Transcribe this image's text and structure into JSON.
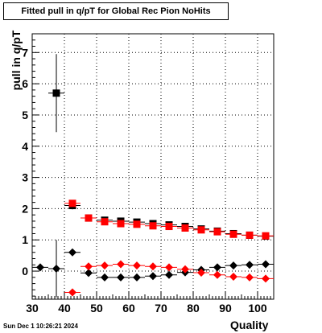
{
  "chart_data": {
    "type": "scatter",
    "title": "Fitted pull in q/pT for Global Rec Pion NoHits",
    "xlabel": "Quality",
    "ylabel": "pull in q/pT",
    "xlim": [
      30,
      105
    ],
    "ylim": [
      -0.9,
      7.6
    ],
    "xticks": [
      30,
      40,
      50,
      60,
      70,
      80,
      90,
      100
    ],
    "yticks": [
      0,
      1,
      2,
      3,
      4,
      5,
      6,
      7
    ],
    "grid": true,
    "x": [
      32.5,
      37.5,
      42.5,
      47.5,
      52.5,
      57.5,
      62.5,
      67.5,
      72.5,
      77.5,
      82.5,
      87.5,
      92.5,
      97.5,
      102.5
    ],
    "series": [
      {
        "marker": "square",
        "color": "#000000",
        "values": [
          null,
          5.7,
          2.1,
          1.7,
          1.63,
          1.6,
          1.57,
          1.52,
          1.48,
          1.43,
          1.35,
          1.28,
          1.2,
          1.15,
          1.12
        ],
        "errors": [
          null,
          1.25,
          0.12,
          0.04,
          0.04,
          0.04,
          0.03,
          0.03,
          0.03,
          0.03,
          0.03,
          0.03,
          0.03,
          0.03,
          0.03
        ]
      },
      {
        "marker": "square",
        "color": "#ff0000",
        "values": [
          null,
          null,
          2.17,
          1.7,
          1.58,
          1.52,
          1.5,
          1.45,
          1.43,
          1.38,
          1.32,
          1.26,
          1.18,
          1.15,
          1.13
        ],
        "errors": [
          null,
          null,
          0.1,
          0.04,
          0.04,
          0.04,
          0.03,
          0.03,
          0.03,
          0.03,
          0.03,
          0.03,
          0.03,
          0.03,
          0.03
        ]
      },
      {
        "marker": "diamond",
        "color": "#000000",
        "values": [
          0.12,
          0.08,
          0.6,
          -0.06,
          -0.2,
          -0.2,
          -0.2,
          -0.16,
          -0.12,
          -0.04,
          0.04,
          0.12,
          0.18,
          0.2,
          0.22
        ],
        "errors": [
          0.0,
          0.92,
          0.1,
          0.05,
          0.04,
          0.04,
          0.04,
          0.04,
          0.04,
          0.04,
          0.04,
          0.04,
          0.04,
          0.04,
          0.04
        ]
      },
      {
        "marker": "diamond",
        "color": "#ff0000",
        "values": [
          null,
          null,
          -0.68,
          0.15,
          0.18,
          0.22,
          0.18,
          0.15,
          0.12,
          0.06,
          -0.05,
          -0.12,
          -0.18,
          -0.2,
          -0.24
        ],
        "errors": [
          null,
          null,
          0.08,
          0.04,
          0.04,
          0.04,
          0.04,
          0.04,
          0.04,
          0.04,
          0.04,
          0.04,
          0.04,
          0.04,
          0.04
        ]
      }
    ]
  },
  "footer": {
    "date": "Sun Dec  1 10:26:21 2024"
  }
}
